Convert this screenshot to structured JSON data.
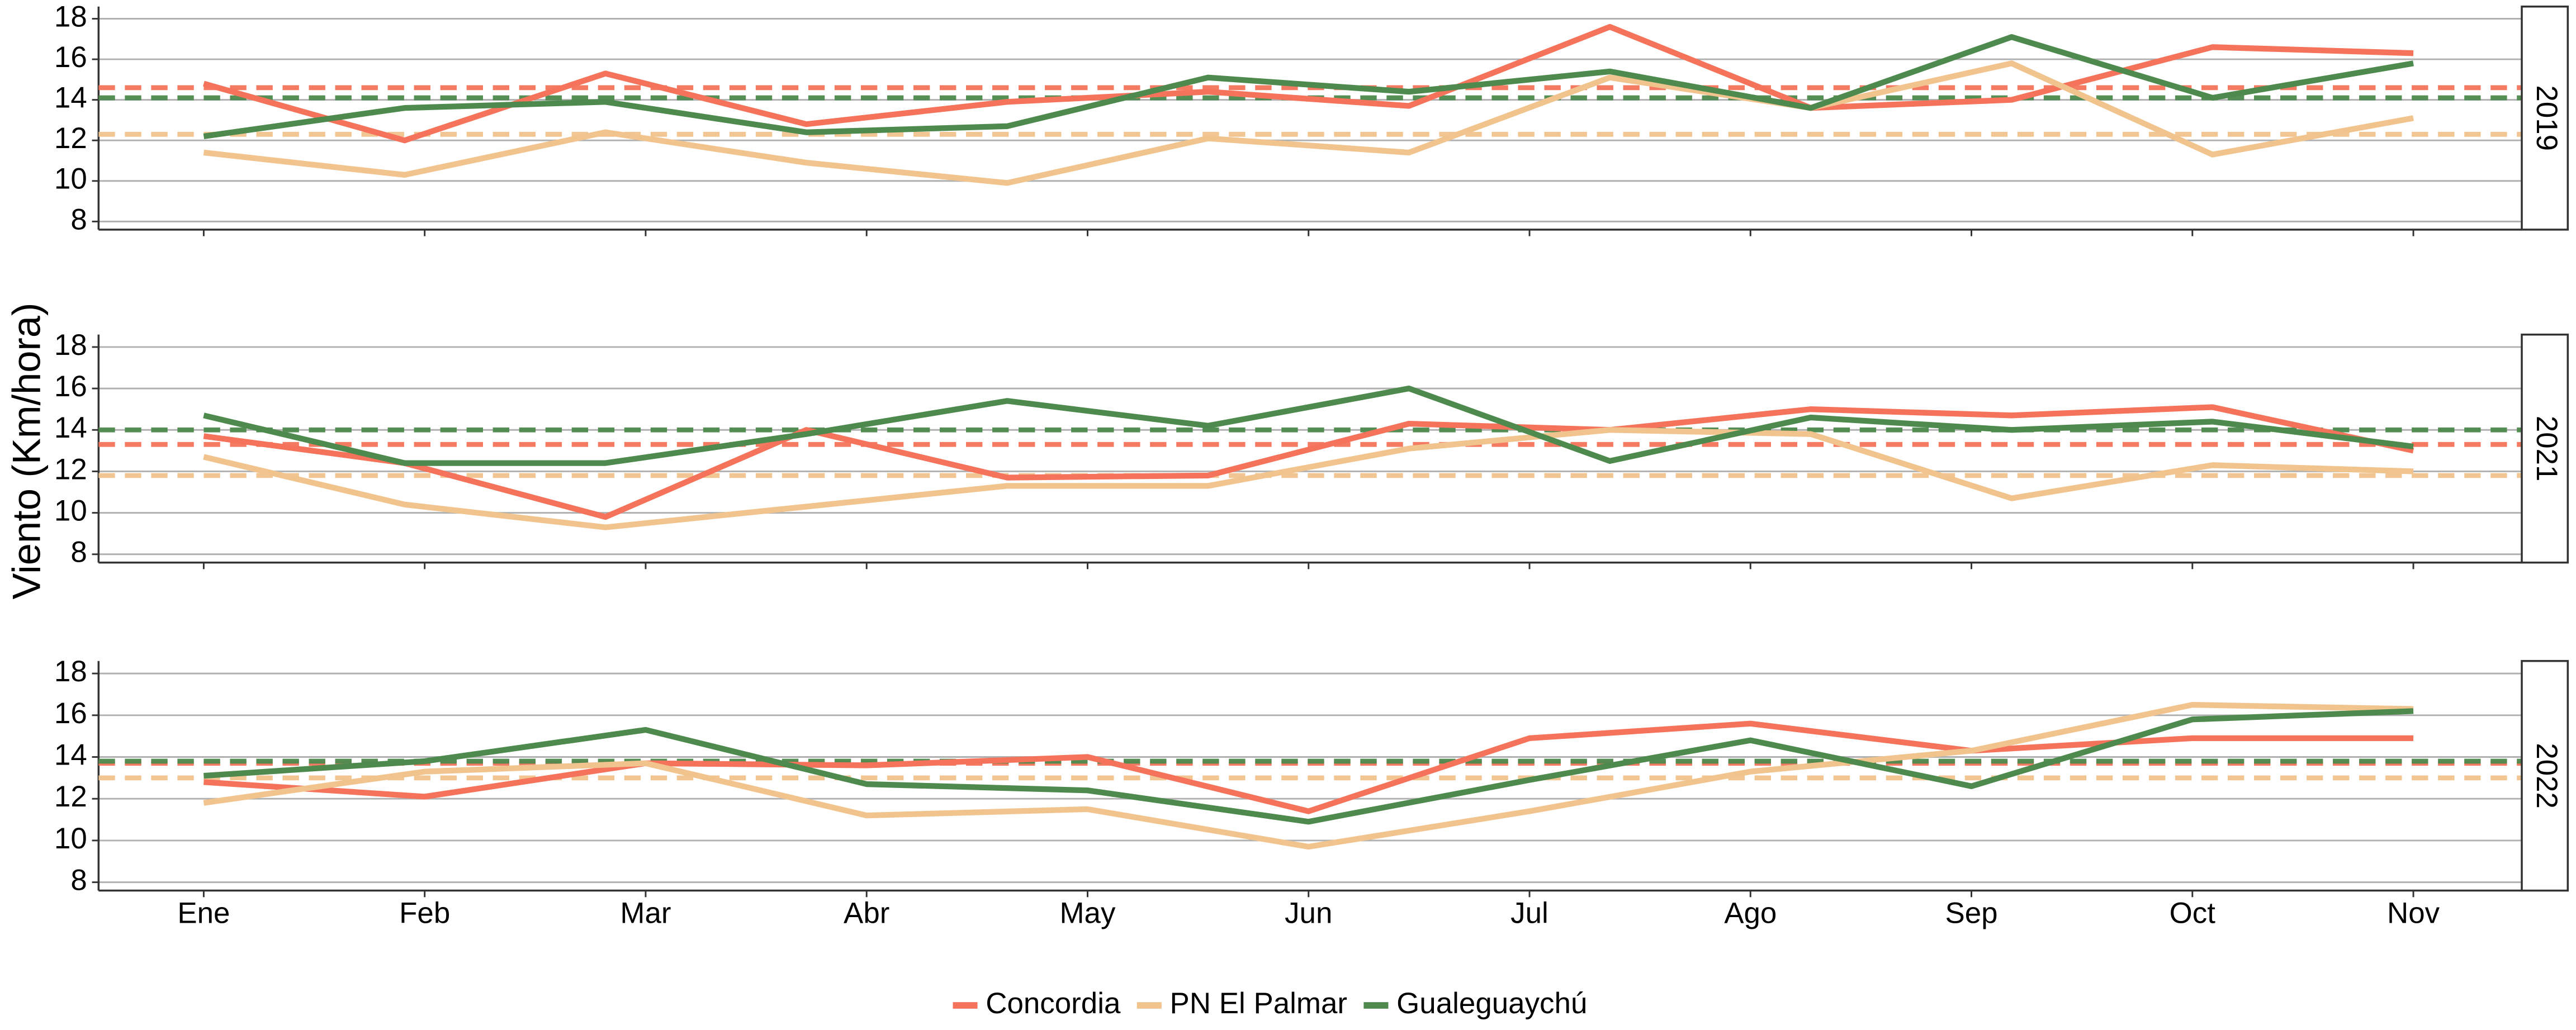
{
  "chart_data": [
    {
      "type": "line",
      "y_label": "Viento (Km/hora)",
      "panel_label": "2019",
      "x": [
        1,
        2,
        3,
        4,
        5,
        6,
        7,
        8,
        9,
        10,
        11,
        12
      ],
      "xlim": [
        1,
        12
      ],
      "ylim": [
        7.6,
        18.6
      ],
      "yticks": [
        8,
        10,
        12,
        14,
        16,
        18
      ],
      "grid": true,
      "series": [
        {
          "name": "Concordia",
          "color": "#f4735a",
          "mean": 14.6,
          "values": [
            14.8,
            12.0,
            15.3,
            12.8,
            13.9,
            14.4,
            13.7,
            17.6,
            13.6,
            14.0,
            16.6,
            16.3
          ]
        },
        {
          "name": "PN El Palmar",
          "color": "#f1c48e",
          "mean": 12.3,
          "values": [
            11.4,
            10.3,
            12.4,
            10.9,
            9.9,
            12.1,
            11.4,
            15.1,
            13.6,
            15.8,
            11.3,
            13.1
          ]
        },
        {
          "name": "Gualeguaychú",
          "color": "#4e8a4e",
          "mean": 14.1,
          "values": [
            12.2,
            13.6,
            13.9,
            12.4,
            12.7,
            15.1,
            14.4,
            15.4,
            13.6,
            17.1,
            14.1,
            15.8
          ]
        }
      ]
    },
    {
      "type": "line",
      "panel_label": "2021",
      "x": [
        1,
        2,
        3,
        4,
        5,
        6,
        7,
        8,
        9,
        10,
        11,
        12
      ],
      "xlim": [
        1,
        12
      ],
      "ylim": [
        7.6,
        18.6
      ],
      "yticks": [
        8,
        10,
        12,
        14,
        16,
        18
      ],
      "grid": true,
      "series": [
        {
          "name": "Concordia",
          "color": "#f4735a",
          "mean": 13.3,
          "values": [
            13.7,
            12.4,
            9.8,
            14.0,
            11.7,
            11.8,
            14.3,
            14.0,
            15.0,
            14.7,
            15.1,
            13.0
          ]
        },
        {
          "name": "PN El Palmar",
          "color": "#f1c48e",
          "mean": 11.8,
          "values": [
            12.7,
            10.4,
            9.3,
            10.3,
            11.3,
            11.3,
            13.1,
            14.0,
            13.8,
            10.7,
            12.3,
            12.0
          ]
        },
        {
          "name": "Gualeguaychú",
          "color": "#4e8a4e",
          "mean": 14.0,
          "values": [
            14.7,
            12.4,
            12.4,
            13.8,
            15.4,
            14.2,
            16.0,
            12.5,
            14.6,
            14.0,
            14.4,
            13.2
          ]
        }
      ]
    },
    {
      "type": "line",
      "panel_label": "2022",
      "x": [
        1,
        2,
        3,
        4,
        5,
        6,
        7,
        8,
        9,
        10,
        11
      ],
      "xlim": [
        1,
        11
      ],
      "xticks": [
        {
          "value": 1,
          "label": "Ene"
        },
        {
          "value": 2,
          "label": "Feb"
        },
        {
          "value": 3,
          "label": "Mar"
        },
        {
          "value": 4,
          "label": "Abr"
        },
        {
          "value": 5,
          "label": "May"
        },
        {
          "value": 6,
          "label": "Jun"
        },
        {
          "value": 7,
          "label": "Jul"
        },
        {
          "value": 8,
          "label": "Ago"
        },
        {
          "value": 9,
          "label": "Sep"
        },
        {
          "value": 10,
          "label": "Oct"
        },
        {
          "value": 11,
          "label": "Nov"
        }
      ],
      "ylim": [
        7.6,
        18.6
      ],
      "yticks": [
        8,
        10,
        12,
        14,
        16,
        18
      ],
      "grid": true,
      "series": [
        {
          "name": "Concordia",
          "color": "#f4735a",
          "mean": 13.7,
          "values": [
            12.8,
            12.1,
            13.7,
            13.6,
            14.0,
            11.4,
            14.9,
            15.6,
            14.3,
            14.9,
            14.9
          ]
        },
        {
          "name": "PN El Palmar",
          "color": "#f1c48e",
          "mean": 13.0,
          "values": [
            11.8,
            13.3,
            13.7,
            11.2,
            11.5,
            9.7,
            11.4,
            13.3,
            14.3,
            16.5,
            16.3
          ]
        },
        {
          "name": "Gualeguaychú",
          "color": "#4e8a4e",
          "mean": 13.8,
          "values": [
            13.1,
            13.8,
            15.3,
            12.7,
            12.4,
            10.9,
            12.9,
            14.8,
            12.6,
            15.8,
            16.2
          ]
        }
      ]
    }
  ]
}
